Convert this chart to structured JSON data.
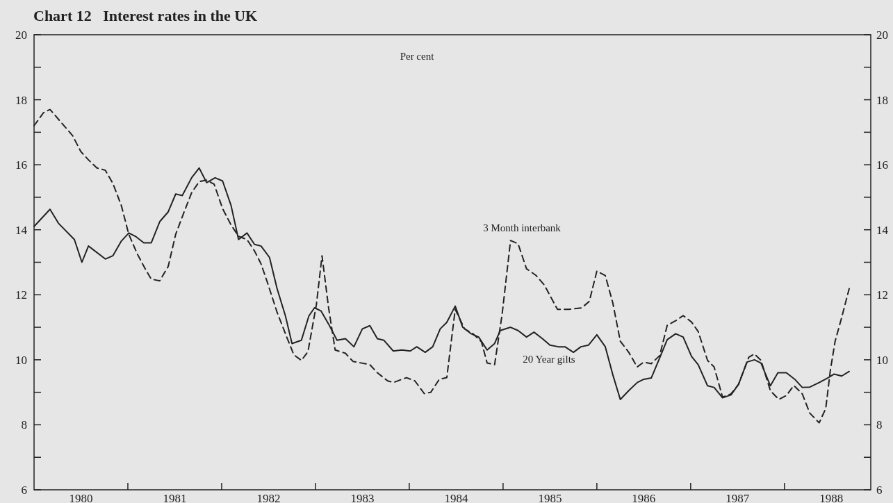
{
  "chart_data": {
    "type": "line",
    "title": "Chart 12   Interest rates in the UK",
    "ylabel": "Per cent",
    "xlim": [
      1980,
      1988.92
    ],
    "xticks": [
      {
        "value": 1980.5,
        "label": "1980"
      },
      {
        "value": 1981,
        "label": null
      },
      {
        "value": 1981.5,
        "label": "1981"
      },
      {
        "value": 1982,
        "label": null
      },
      {
        "value": 1982.5,
        "label": "1982"
      },
      {
        "value": 1983,
        "label": null
      },
      {
        "value": 1983.5,
        "label": "1983"
      },
      {
        "value": 1984,
        "label": null
      },
      {
        "value": 1984.5,
        "label": "1984"
      },
      {
        "value": 1985,
        "label": null
      },
      {
        "value": 1985.5,
        "label": "1985"
      },
      {
        "value": 1986,
        "label": null
      },
      {
        "value": 1986.5,
        "label": "1986"
      },
      {
        "value": 1987,
        "label": null
      },
      {
        "value": 1987.5,
        "label": "1987"
      },
      {
        "value": 1988,
        "label": null
      },
      {
        "value": 1988.5,
        "label": "1988"
      }
    ],
    "ylim": [
      6,
      20
    ],
    "yticks": [
      6,
      {
        "value": 7,
        "label": null
      },
      8,
      {
        "value": 9,
        "label": null
      },
      10,
      {
        "value": 11,
        "label": null
      },
      12,
      {
        "value": 13,
        "label": null
      },
      14,
      {
        "value": 15,
        "label": null
      },
      16,
      {
        "value": 17,
        "label": null
      },
      18,
      {
        "value": 19,
        "label": null
      },
      20
    ],
    "y2lim": [
      6,
      20
    ],
    "y2ticks": [
      6,
      {
        "value": 7,
        "label": null
      },
      8,
      {
        "value": 9,
        "label": null
      },
      10,
      {
        "value": 11,
        "label": null
      },
      12,
      {
        "value": 13,
        "label": null
      },
      14,
      {
        "value": 15,
        "label": null
      },
      16,
      {
        "value": 17,
        "label": null
      },
      18,
      {
        "value": 19,
        "label": null
      },
      20
    ],
    "grid": false,
    "marker": "none",
    "series": [
      {
        "name": "20 Year gilts",
        "color": "#222222",
        "line_style": "solid",
        "x": [
          1980.0,
          1980.17,
          1980.26,
          1980.43,
          1980.51,
          1980.58,
          1980.76,
          1980.84,
          1980.93,
          1981.01,
          1981.08,
          1981.17,
          1981.25,
          1981.34,
          1981.43,
          1981.51,
          1981.58,
          1981.68,
          1981.76,
          1981.84,
          1981.93,
          1982.01,
          1982.1,
          1982.18,
          1982.27,
          1982.35,
          1982.42,
          1982.51,
          1982.59,
          1982.68,
          1982.75,
          1982.85,
          1982.93,
          1982.99,
          1983.06,
          1983.14,
          1983.23,
          1983.32,
          1983.41,
          1983.5,
          1983.58,
          1983.66,
          1983.73,
          1983.83,
          1983.92,
          1984.01,
          1984.08,
          1984.17,
          1984.25,
          1984.33,
          1984.4,
          1984.49,
          1984.57,
          1984.66,
          1984.74,
          1984.83,
          1984.91,
          1984.97,
          1985.08,
          1985.16,
          1985.25,
          1985.33,
          1985.42,
          1985.5,
          1985.59,
          1985.66,
          1985.75,
          1985.83,
          1985.91,
          1986.0,
          1986.09,
          1986.17,
          1986.25,
          1986.34,
          1986.43,
          1986.5,
          1986.58,
          1986.67,
          1986.75,
          1986.84,
          1986.92,
          1987.01,
          1987.08,
          1987.18,
          1987.25,
          1987.34,
          1987.43,
          1987.51,
          1987.6,
          1987.68,
          1987.75,
          1987.85,
          1987.93,
          1988.02,
          1988.11,
          1988.19,
          1988.27,
          1988.37,
          1988.46,
          1988.53,
          1988.61,
          1988.69
        ],
        "values": [
          14.1,
          14.63,
          14.2,
          13.7,
          13.0,
          13.5,
          13.1,
          13.2,
          13.65,
          13.9,
          13.8,
          13.6,
          13.6,
          14.25,
          14.55,
          15.1,
          15.05,
          15.6,
          15.9,
          15.45,
          15.6,
          15.5,
          14.75,
          13.7,
          13.9,
          13.55,
          13.5,
          13.15,
          12.2,
          11.35,
          10.5,
          10.6,
          11.35,
          11.6,
          11.5,
          11.1,
          10.6,
          10.65,
          10.4,
          10.95,
          11.05,
          10.65,
          10.6,
          10.27,
          10.3,
          10.27,
          10.4,
          10.23,
          10.4,
          10.95,
          11.15,
          11.65,
          11.0,
          10.8,
          10.7,
          10.3,
          10.5,
          10.9,
          11.0,
          10.9,
          10.7,
          10.85,
          10.65,
          10.45,
          10.4,
          10.4,
          10.23,
          10.4,
          10.45,
          10.77,
          10.4,
          9.54,
          8.78,
          9.05,
          9.3,
          9.4,
          9.44,
          10.06,
          10.62,
          10.8,
          10.7,
          10.1,
          9.85,
          9.2,
          9.15,
          8.83,
          8.92,
          9.24,
          9.93,
          10.0,
          9.9,
          9.2,
          9.6,
          9.6,
          9.4,
          9.15,
          9.16,
          9.3,
          9.44,
          9.56,
          9.5,
          9.64
        ]
      },
      {
        "name": "3 Month interbank",
        "color": "#222222",
        "line_style": "dashed",
        "x": [
          1980.0,
          1980.1,
          1980.17,
          1980.29,
          1980.41,
          1980.5,
          1980.58,
          1980.67,
          1980.76,
          1980.84,
          1980.93,
          1981.01,
          1981.1,
          1981.19,
          1981.25,
          1981.34,
          1981.43,
          1981.51,
          1981.6,
          1981.68,
          1981.76,
          1981.84,
          1981.92,
          1982.01,
          1982.1,
          1982.18,
          1982.27,
          1982.35,
          1982.42,
          1982.49,
          1982.59,
          1982.68,
          1982.77,
          1982.85,
          1982.92,
          1983.01,
          1983.07,
          1983.14,
          1983.21,
          1983.32,
          1983.4,
          1983.58,
          1983.66,
          1983.77,
          1983.83,
          1983.97,
          1984.06,
          1984.16,
          1984.23,
          1984.32,
          1984.4,
          1984.49,
          1984.59,
          1984.68,
          1984.77,
          1984.83,
          1984.91,
          1984.99,
          1985.08,
          1985.16,
          1985.25,
          1985.35,
          1985.44,
          1985.58,
          1985.7,
          1985.84,
          1985.92,
          1986.0,
          1986.09,
          1986.17,
          1986.25,
          1986.34,
          1986.43,
          1986.5,
          1986.58,
          1986.67,
          1986.75,
          1986.84,
          1986.92,
          1987.01,
          1987.08,
          1987.18,
          1987.25,
          1987.34,
          1987.43,
          1987.51,
          1987.62,
          1987.68,
          1987.75,
          1987.85,
          1987.94,
          1988.02,
          1988.1,
          1988.19,
          1988.27,
          1988.37,
          1988.44,
          1988.49,
          1988.54,
          1988.61,
          1988.69
        ],
        "values": [
          17.2,
          17.6,
          17.7,
          17.3,
          16.9,
          16.4,
          16.15,
          15.9,
          15.83,
          15.43,
          14.75,
          13.86,
          13.26,
          12.77,
          12.48,
          12.43,
          12.87,
          13.86,
          14.55,
          15.14,
          15.48,
          15.53,
          15.4,
          14.65,
          14.15,
          13.8,
          13.7,
          13.35,
          12.95,
          12.36,
          11.47,
          10.8,
          10.15,
          9.98,
          10.25,
          11.7,
          13.2,
          11.6,
          10.3,
          10.2,
          9.95,
          9.85,
          9.6,
          9.35,
          9.3,
          9.45,
          9.35,
          8.96,
          9.0,
          9.4,
          9.45,
          11.55,
          10.95,
          10.8,
          10.55,
          9.9,
          9.85,
          11.4,
          13.67,
          13.57,
          12.8,
          12.6,
          12.3,
          11.55,
          11.55,
          11.6,
          11.8,
          12.73,
          12.59,
          11.75,
          10.57,
          10.23,
          9.78,
          9.93,
          9.88,
          10.13,
          11.06,
          11.2,
          11.36,
          11.16,
          10.87,
          9.98,
          9.78,
          8.85,
          8.95,
          9.24,
          10.08,
          10.18,
          9.98,
          9.05,
          8.78,
          8.9,
          9.21,
          8.95,
          8.36,
          8.06,
          8.5,
          9.69,
          10.57,
          11.3,
          12.19
        ]
      }
    ]
  }
}
